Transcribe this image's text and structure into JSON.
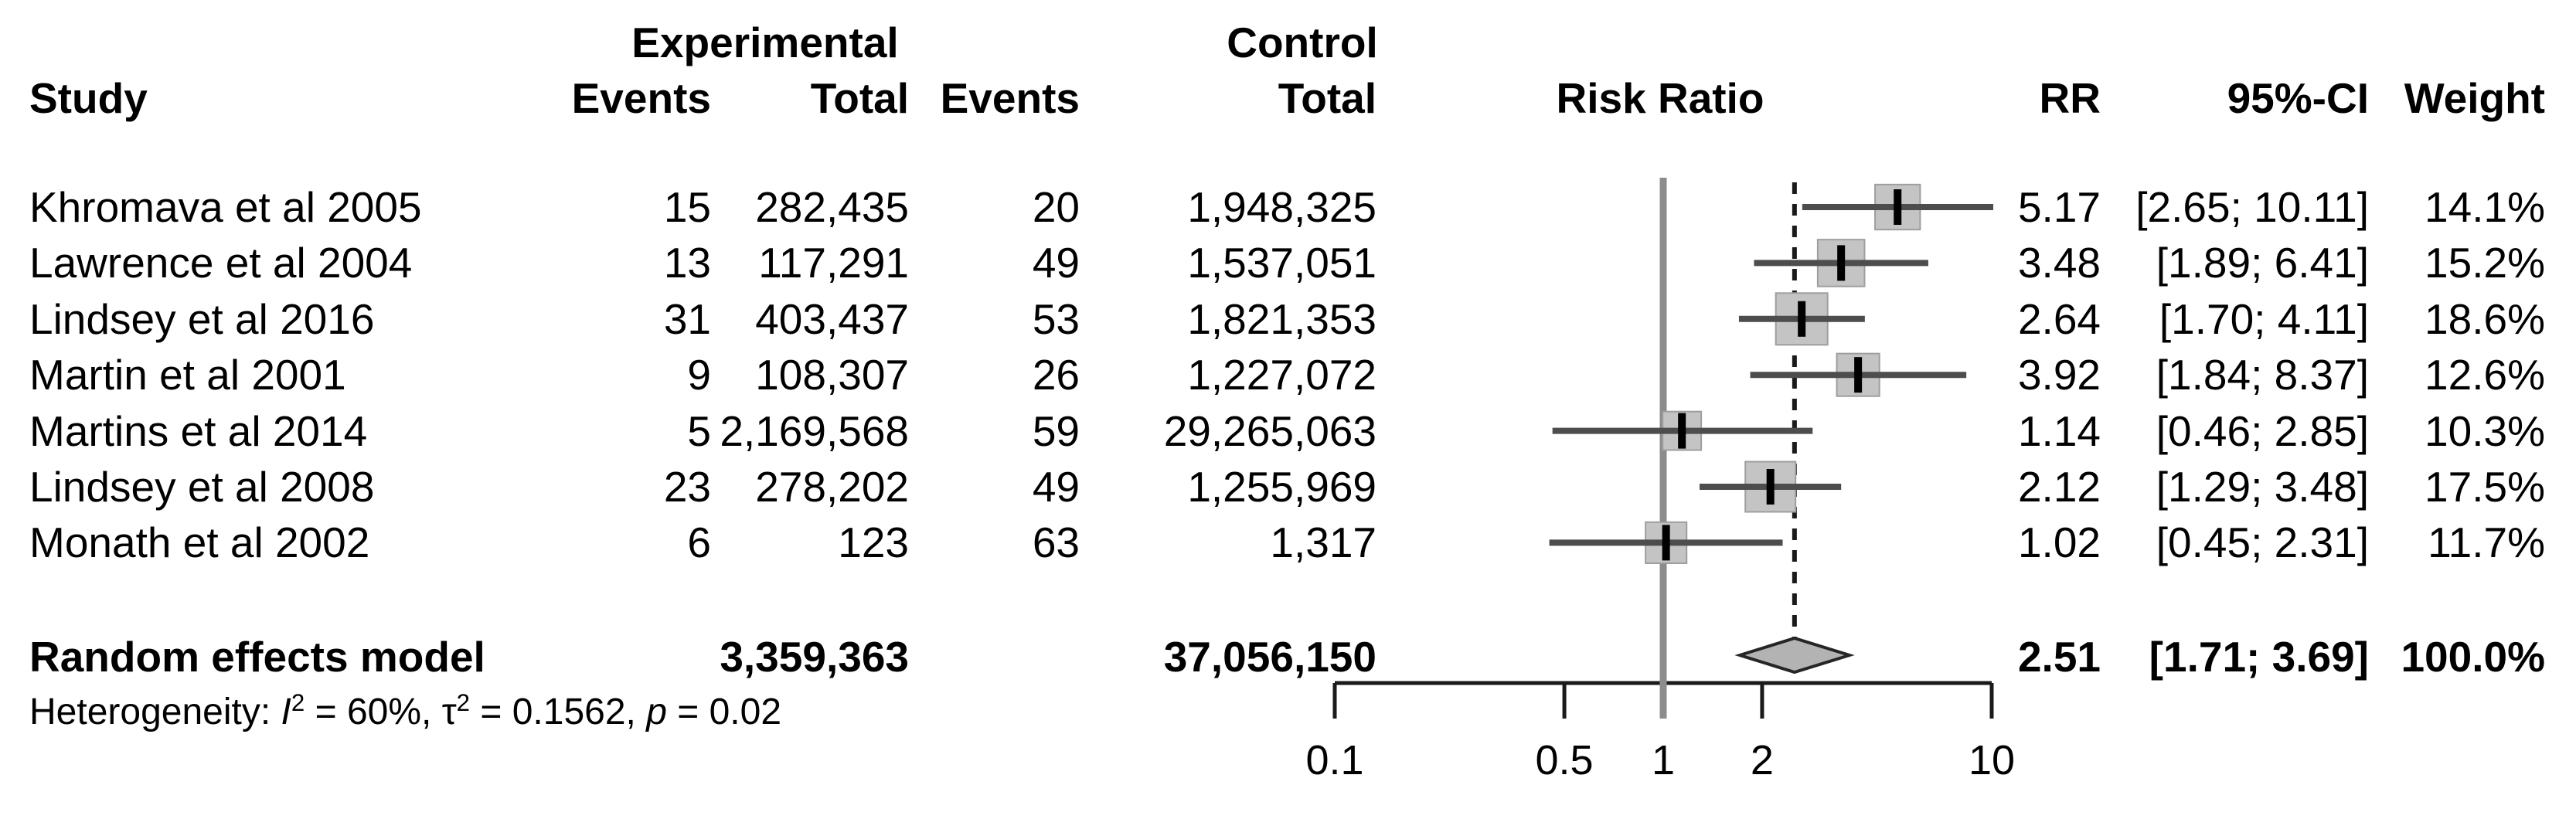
{
  "columns": {
    "study": "Study",
    "experimental": "Experimental",
    "control": "Control",
    "events": "Events",
    "total": "Total",
    "rr": "RR",
    "ci": "95%-CI",
    "weight": "Weight"
  },
  "colors": {
    "text": "#000000",
    "axis": "#1a1a1a",
    "reference_line": "#8c8c8c",
    "dashed_line": "#1a1a1a",
    "ci_line": "#4d4d4d",
    "square": "#c4c4c4",
    "square_border": "#9e9e9e",
    "marker": "#000000",
    "diamond_fill": "#b3b3b3",
    "diamond_border": "#262626"
  },
  "heterogeneity_parts": [
    {
      "text": "Heterogeneity: "
    },
    {
      "text": "I",
      "italic": true
    },
    {
      "text": "2",
      "sup": true
    },
    {
      "text": " = 60%, "
    },
    {
      "text": "τ"
    },
    {
      "text": "2",
      "sup": true
    },
    {
      "text": " = 0.1562, "
    },
    {
      "text": "p",
      "italic": true
    },
    {
      "text": " = 0.02"
    }
  ],
  "chart_data": {
    "type": "scatter",
    "variant": "forest_plot",
    "title": "Risk Ratio",
    "x_scale": "log10",
    "x_range": [
      0.1,
      10
    ],
    "x_ticks": [
      {
        "value": 0.1,
        "label": "0.1"
      },
      {
        "value": 0.5,
        "label": "0.5"
      },
      {
        "value": 1,
        "label": "1"
      },
      {
        "value": 2,
        "label": "2"
      },
      {
        "value": 10,
        "label": "10"
      }
    ],
    "reference_line_x": 1,
    "pooled_dashed_line_x": 2.51,
    "heterogeneity_text": "Heterogeneity: I² = 60%, τ² = 0.1562, p = 0.02",
    "studies": [
      {
        "study": "Khromava et al 2005",
        "exp_events": "15",
        "exp_total": "282,435",
        "ctrl_events": "20",
        "ctrl_total": "1,948,325",
        "rr": 5.17,
        "ci_low": 2.65,
        "ci_high": 10.11,
        "rr_label": "5.17",
        "ci_label": "[2.65; 10.11]",
        "weight": 14.1,
        "weight_label": "14.1%"
      },
      {
        "study": "Lawrence et al 2004",
        "exp_events": "13",
        "exp_total": "117,291",
        "ctrl_events": "49",
        "ctrl_total": "1,537,051",
        "rr": 3.48,
        "ci_low": 1.89,
        "ci_high": 6.41,
        "rr_label": "3.48",
        "ci_label": "[1.89; 6.41]",
        "weight": 15.2,
        "weight_label": "15.2%"
      },
      {
        "study": "Lindsey et al 2016",
        "exp_events": "31",
        "exp_total": "403,437",
        "ctrl_events": "53",
        "ctrl_total": "1,821,353",
        "rr": 2.64,
        "ci_low": 1.7,
        "ci_high": 4.11,
        "rr_label": "2.64",
        "ci_label": "[1.70; 4.11]",
        "weight": 18.6,
        "weight_label": "18.6%"
      },
      {
        "study": "Martin et al 2001",
        "exp_events": "9",
        "exp_total": "108,307",
        "ctrl_events": "26",
        "ctrl_total": "1,227,072",
        "rr": 3.92,
        "ci_low": 1.84,
        "ci_high": 8.37,
        "rr_label": "3.92",
        "ci_label": "[1.84; 8.37]",
        "weight": 12.6,
        "weight_label": "12.6%"
      },
      {
        "study": "Martins et al 2014",
        "exp_events": "5",
        "exp_total": "2,169,568",
        "ctrl_events": "59",
        "ctrl_total": "29,265,063",
        "rr": 1.14,
        "ci_low": 0.46,
        "ci_high": 2.85,
        "rr_label": "1.14",
        "ci_label": "[0.46; 2.85]",
        "weight": 10.3,
        "weight_label": "10.3%"
      },
      {
        "study": "Lindsey et al 2008",
        "exp_events": "23",
        "exp_total": "278,202",
        "ctrl_events": "49",
        "ctrl_total": "1,255,969",
        "rr": 2.12,
        "ci_low": 1.29,
        "ci_high": 3.48,
        "rr_label": "2.12",
        "ci_label": "[1.29; 3.48]",
        "weight": 17.5,
        "weight_label": "17.5%"
      },
      {
        "study": "Monath et al 2002",
        "exp_events": "6",
        "exp_total": "123",
        "ctrl_events": "63",
        "ctrl_total": "1,317",
        "rr": 1.02,
        "ci_low": 0.45,
        "ci_high": 2.31,
        "rr_label": "1.02",
        "ci_label": "[0.45; 2.31]",
        "weight": 11.7,
        "weight_label": "11.7%"
      }
    ],
    "pooled": {
      "label": "Random effects model",
      "exp_total": "3,359,363",
      "ctrl_total": "37,056,150",
      "rr": 2.51,
      "ci_low": 1.71,
      "ci_high": 3.69,
      "rr_label": "2.51",
      "ci_label": "[1.71; 3.69]",
      "weight_label": "100.0%"
    }
  }
}
